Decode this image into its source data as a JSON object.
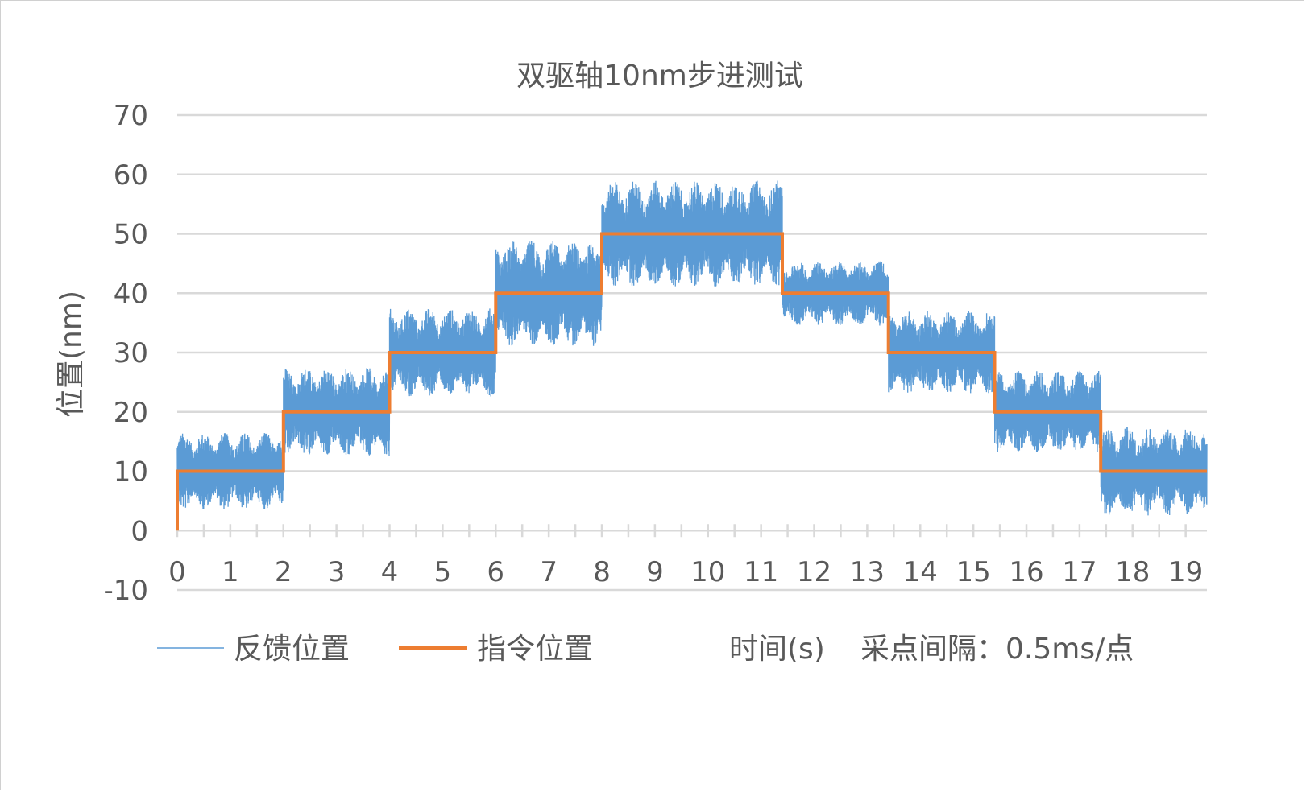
{
  "chart_data": {
    "type": "line",
    "title": "双驱轴10nm步进测试",
    "xlabel": "时间(s)",
    "ylabel": "位置(nm)",
    "note": "采点间隔：0.5ms/点",
    "xlim": [
      0,
      19.4
    ],
    "ylim": [
      -10,
      70
    ],
    "x_ticks": [
      0,
      1,
      2,
      3,
      4,
      5,
      6,
      7,
      8,
      9,
      10,
      11,
      12,
      13,
      14,
      15,
      16,
      17,
      18,
      19
    ],
    "y_ticks": [
      -10,
      0,
      10,
      20,
      30,
      40,
      50,
      60,
      70
    ],
    "grid": true,
    "legend_position": "bottom",
    "colors": {
      "feedback": "#5b9bd5",
      "command": "#ed7d31",
      "grid": "#d9d9d9",
      "text": "#595959"
    },
    "series": [
      {
        "name": "反馈位置",
        "kind": "noisy",
        "segments": [
          {
            "x0": 0.0,
            "x1": 2.0,
            "center": 10,
            "low": 3,
            "high": 16
          },
          {
            "x0": 2.0,
            "x1": 4.0,
            "center": 20,
            "low": 13,
            "high": 28
          },
          {
            "x0": 4.0,
            "x1": 6.0,
            "center": 30,
            "low": 23,
            "high": 38
          },
          {
            "x0": 6.0,
            "x1": 8.0,
            "center": 40,
            "low": 31,
            "high": 49
          },
          {
            "x0": 8.0,
            "x1": 11.4,
            "center": 50,
            "low": 41,
            "high": 59
          },
          {
            "x0": 11.4,
            "x1": 13.4,
            "center": 40,
            "low": 35,
            "high": 46
          },
          {
            "x0": 13.4,
            "x1": 15.4,
            "center": 30,
            "low": 24,
            "high": 38
          },
          {
            "x0": 15.4,
            "x1": 17.4,
            "center": 20,
            "low": 14,
            "high": 28
          },
          {
            "x0": 17.4,
            "x1": 19.4,
            "center": 10,
            "low": 3,
            "high": 18
          }
        ]
      },
      {
        "name": "指令位置",
        "kind": "step",
        "x": [
          0,
          0,
          2,
          2,
          4,
          4,
          6,
          6,
          8,
          8,
          11.4,
          11.4,
          13.4,
          13.4,
          15.4,
          15.4,
          17.4,
          17.4,
          19.4
        ],
        "y": [
          0,
          10,
          10,
          20,
          20,
          30,
          30,
          40,
          40,
          50,
          50,
          40,
          40,
          30,
          30,
          20,
          20,
          10,
          10
        ]
      }
    ]
  }
}
